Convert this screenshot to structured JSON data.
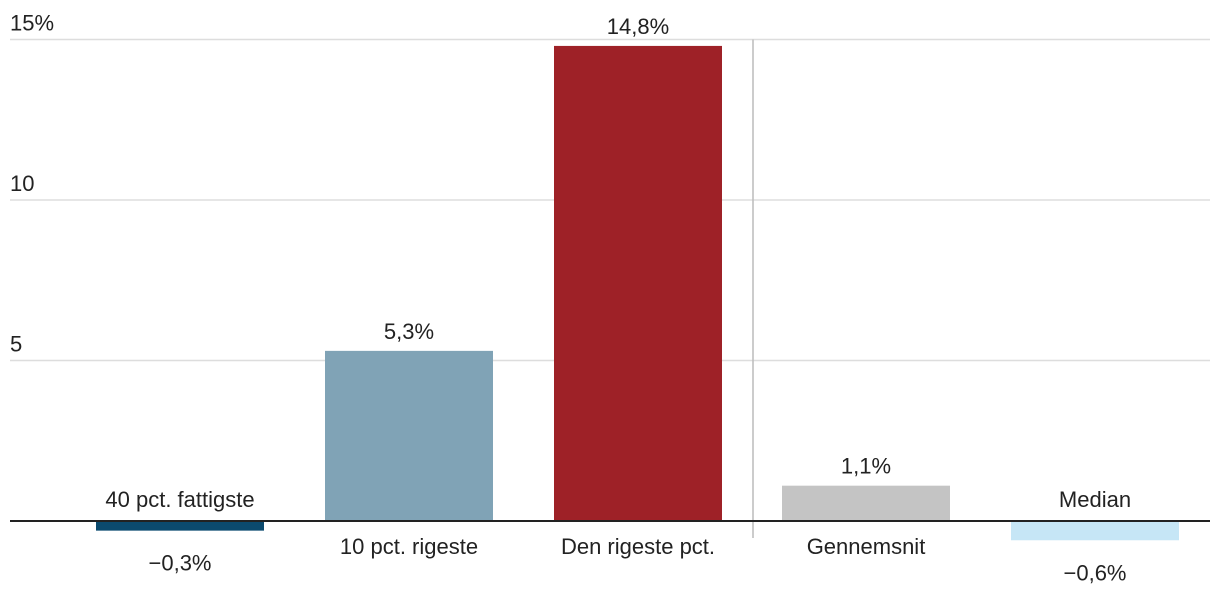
{
  "chart_data": {
    "type": "bar",
    "categories": [
      "40 pct. fattigste",
      "10 pct. rigeste",
      "Den rigeste pct.",
      "Gennemsnit",
      "Median"
    ],
    "values": [
      -0.3,
      5.3,
      14.8,
      1.1,
      -0.6
    ],
    "value_labels": [
      "−0,3%",
      "5,3%",
      "14,8%",
      "1,1%",
      "−0,6%"
    ],
    "colors": [
      "#0b4a6e",
      "#80a3b6",
      "#9e2127",
      "#c4c4c4",
      "#c6e6f6"
    ],
    "yticks": [
      {
        "value": 15,
        "label": "15%"
      },
      {
        "value": 10,
        "label": "10"
      },
      {
        "value": 5,
        "label": "5"
      }
    ],
    "ylim": [
      -0.6,
      15
    ],
    "separator_after_index": 2,
    "grid": true,
    "title": "",
    "xlabel": "",
    "ylabel": ""
  }
}
